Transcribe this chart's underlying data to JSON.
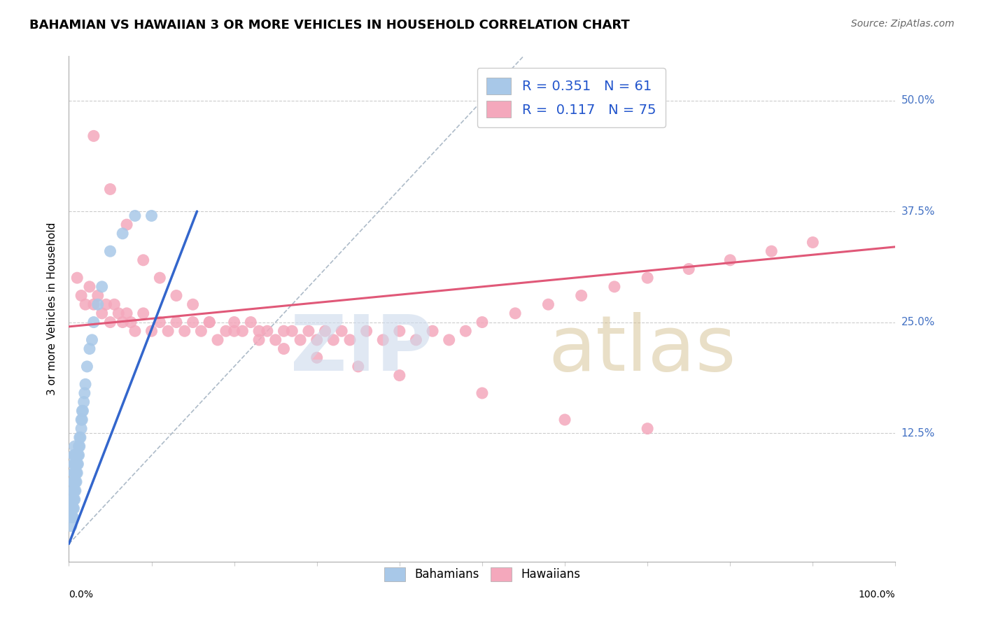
{
  "title": "BAHAMIAN VS HAWAIIAN 3 OR MORE VEHICLES IN HOUSEHOLD CORRELATION CHART",
  "source": "Source: ZipAtlas.com",
  "ylabel": "3 or more Vehicles in Household",
  "ytick_labels": [
    "12.5%",
    "25.0%",
    "37.5%",
    "50.0%"
  ],
  "ytick_values": [
    0.125,
    0.25,
    0.375,
    0.5
  ],
  "xlim": [
    0.0,
    1.0
  ],
  "ylim": [
    -0.02,
    0.55
  ],
  "bahamian_R": "0.351",
  "bahamian_N": "61",
  "hawaiian_R": "0.117",
  "hawaiian_N": "75",
  "bahamian_color": "#a8c8e8",
  "hawaiian_color": "#f4a8bc",
  "bahamian_line_color": "#3366cc",
  "hawaiian_line_color": "#e05878",
  "background_color": "#ffffff",
  "title_fontsize": 13,
  "source_fontsize": 10,
  "legend_color": "#2255cc",
  "bahamian_scatter_x": [
    0.003,
    0.003,
    0.004,
    0.004,
    0.004,
    0.005,
    0.005,
    0.005,
    0.005,
    0.005,
    0.006,
    0.006,
    0.006,
    0.006,
    0.006,
    0.006,
    0.006,
    0.007,
    0.007,
    0.007,
    0.007,
    0.007,
    0.007,
    0.007,
    0.008,
    0.008,
    0.008,
    0.008,
    0.008,
    0.009,
    0.009,
    0.009,
    0.009,
    0.01,
    0.01,
    0.01,
    0.011,
    0.011,
    0.012,
    0.012,
    0.013,
    0.013,
    0.014,
    0.015,
    0.015,
    0.016,
    0.016,
    0.017,
    0.018,
    0.019,
    0.02,
    0.022,
    0.025,
    0.028,
    0.03,
    0.035,
    0.04,
    0.05,
    0.065,
    0.08,
    0.1
  ],
  "bahamian_scatter_y": [
    0.02,
    0.03,
    0.03,
    0.04,
    0.05,
    0.03,
    0.04,
    0.05,
    0.06,
    0.07,
    0.04,
    0.05,
    0.06,
    0.07,
    0.08,
    0.09,
    0.1,
    0.05,
    0.06,
    0.07,
    0.08,
    0.09,
    0.1,
    0.11,
    0.06,
    0.07,
    0.08,
    0.09,
    0.1,
    0.07,
    0.08,
    0.09,
    0.1,
    0.08,
    0.09,
    0.1,
    0.09,
    0.1,
    0.1,
    0.11,
    0.11,
    0.12,
    0.12,
    0.13,
    0.14,
    0.14,
    0.15,
    0.15,
    0.16,
    0.17,
    0.18,
    0.2,
    0.22,
    0.23,
    0.25,
    0.27,
    0.29,
    0.33,
    0.35,
    0.37,
    0.37
  ],
  "hawaiian_scatter_x": [
    0.01,
    0.015,
    0.02,
    0.025,
    0.03,
    0.035,
    0.04,
    0.045,
    0.05,
    0.055,
    0.06,
    0.065,
    0.07,
    0.075,
    0.08,
    0.09,
    0.1,
    0.11,
    0.12,
    0.13,
    0.14,
    0.15,
    0.16,
    0.17,
    0.18,
    0.19,
    0.2,
    0.21,
    0.22,
    0.23,
    0.24,
    0.25,
    0.26,
    0.27,
    0.28,
    0.29,
    0.3,
    0.31,
    0.32,
    0.33,
    0.34,
    0.36,
    0.38,
    0.4,
    0.42,
    0.44,
    0.46,
    0.48,
    0.5,
    0.54,
    0.58,
    0.62,
    0.66,
    0.7,
    0.75,
    0.8,
    0.85,
    0.9,
    0.03,
    0.05,
    0.07,
    0.09,
    0.11,
    0.13,
    0.15,
    0.17,
    0.2,
    0.23,
    0.26,
    0.3,
    0.35,
    0.4,
    0.5,
    0.6,
    0.7
  ],
  "hawaiian_scatter_y": [
    0.3,
    0.28,
    0.27,
    0.29,
    0.27,
    0.28,
    0.26,
    0.27,
    0.25,
    0.27,
    0.26,
    0.25,
    0.26,
    0.25,
    0.24,
    0.26,
    0.24,
    0.25,
    0.24,
    0.25,
    0.24,
    0.25,
    0.24,
    0.25,
    0.23,
    0.24,
    0.25,
    0.24,
    0.25,
    0.24,
    0.24,
    0.23,
    0.24,
    0.24,
    0.23,
    0.24,
    0.23,
    0.24,
    0.23,
    0.24,
    0.23,
    0.24,
    0.23,
    0.24,
    0.23,
    0.24,
    0.23,
    0.24,
    0.25,
    0.26,
    0.27,
    0.28,
    0.29,
    0.3,
    0.31,
    0.32,
    0.33,
    0.34,
    0.46,
    0.4,
    0.36,
    0.32,
    0.3,
    0.28,
    0.27,
    0.25,
    0.24,
    0.23,
    0.22,
    0.21,
    0.2,
    0.19,
    0.17,
    0.14,
    0.13
  ],
  "bahamian_line_x": [
    0.0,
    0.155
  ],
  "bahamian_line_y": [
    0.0,
    0.375
  ],
  "hawaiian_line_x": [
    0.0,
    1.0
  ],
  "hawaiian_line_y": [
    0.245,
    0.335
  ],
  "diag_line_x": [
    0.0,
    0.55
  ],
  "diag_line_y": [
    0.0,
    0.55
  ]
}
